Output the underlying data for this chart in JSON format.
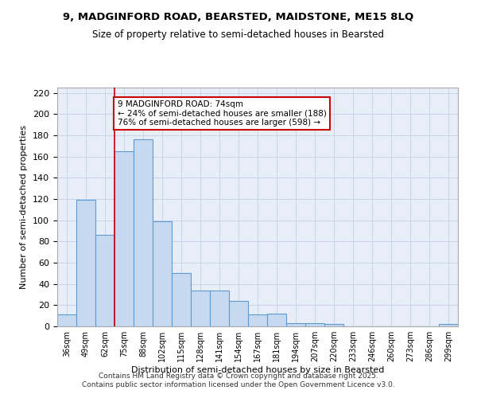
{
  "title": "9, MADGINFORD ROAD, BEARSTED, MAIDSTONE, ME15 8LQ",
  "subtitle": "Size of property relative to semi-detached houses in Bearsted",
  "xlabel": "Distribution of semi-detached houses by size in Bearsted",
  "ylabel": "Number of semi-detached properties",
  "bar_labels": [
    "36sqm",
    "49sqm",
    "62sqm",
    "75sqm",
    "88sqm",
    "102sqm",
    "115sqm",
    "128sqm",
    "141sqm",
    "154sqm",
    "167sqm",
    "181sqm",
    "194sqm",
    "207sqm",
    "220sqm",
    "233sqm",
    "246sqm",
    "260sqm",
    "273sqm",
    "286sqm",
    "299sqm"
  ],
  "bar_values": [
    11,
    119,
    86,
    165,
    176,
    99,
    50,
    34,
    34,
    24,
    11,
    12,
    3,
    3,
    2,
    0,
    0,
    0,
    0,
    0,
    2
  ],
  "bar_color": "#c6d9f0",
  "bar_edge_color": "#5b9bd5",
  "ylim": [
    0,
    225
  ],
  "yticks": [
    0,
    20,
    40,
    60,
    80,
    100,
    120,
    140,
    160,
    180,
    200,
    220
  ],
  "grid_color": "#c8d4e8",
  "bg_color": "#e8eef8",
  "property_line_x": 2.5,
  "annotation_text": "9 MADGINFORD ROAD: 74sqm\n← 24% of semi-detached houses are smaller (188)\n76% of semi-detached houses are larger (598) →",
  "annotation_box_color": "#cc0000",
  "footer_line1": "Contains HM Land Registry data © Crown copyright and database right 2025.",
  "footer_line2": "Contains public sector information licensed under the Open Government Licence v3.0."
}
